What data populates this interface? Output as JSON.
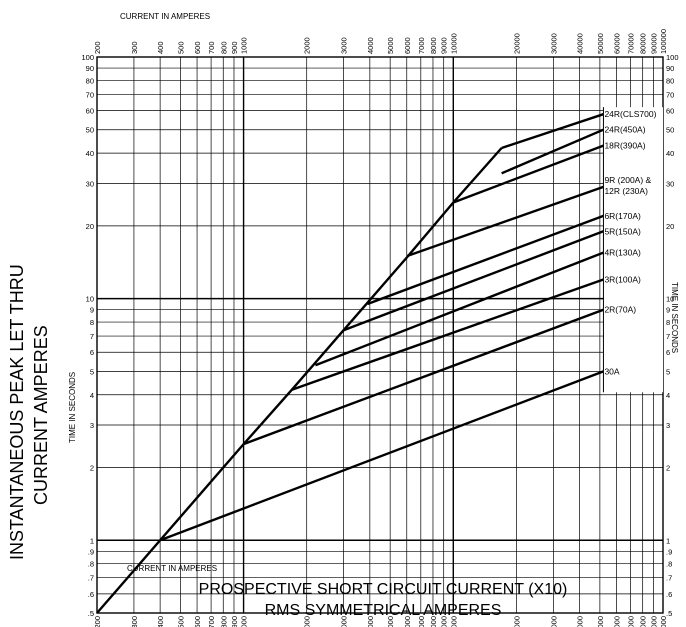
{
  "chart_data": {
    "type": "line",
    "title": "",
    "ylabel": [
      "INSTANTANEOUS PEAK LET THRU",
      "CURRENT AMPERES"
    ],
    "xlabel": [
      "PROSPECTIVE SHORT CIRCUIT CURRENT (X10)",
      "RMS SYMMETRICAL AMPERES"
    ],
    "top_axis_label": "CURRENT  IN  AMPERES",
    "bottom_axis_label": "CURRENT  IN  AMPERES",
    "left_axis_label": "TIME  IN  SECONDS",
    "right_axis_label": "TIME  IN  SECONDS",
    "x_scale": "log",
    "y_scale": "log",
    "xlim": [
      200,
      100000
    ],
    "ylim": [
      0.5,
      100
    ],
    "grid": true,
    "x_tick_labels": [
      "200",
      "300",
      "400",
      "500",
      "600",
      "700",
      "800",
      "900",
      "1000",
      "2000",
      "3000",
      "4000",
      "5000",
      "6000",
      "7000",
      "8000",
      "9000",
      "10000",
      "20000",
      "30000",
      "40000",
      "50000",
      "60000",
      "70000",
      "80000",
      "90000",
      "100000"
    ],
    "y_tick_labels": [
      ".5",
      ".6",
      ".7",
      ".8",
      ".9",
      "1",
      "2",
      "3",
      "4",
      "5",
      "6",
      "7",
      "8",
      "9",
      "10",
      "20",
      "30",
      "40",
      "50",
      "60",
      "70",
      "80",
      "90",
      "100"
    ],
    "series": [
      {
        "name": "",
        "x": [
          200,
          1000,
          1700,
          3000,
          6000,
          10000,
          17000
        ],
        "y": [
          0.5,
          2.5,
          4.2,
          7.4,
          14.8,
          25,
          42
        ]
      },
      {
        "name": "24R(CLS700)",
        "x": [
          17000,
          52000
        ],
        "y": [
          42,
          58
        ]
      },
      {
        "name": "24R(450A)",
        "x": [
          17000,
          52000
        ],
        "y": [
          33,
          50
        ]
      },
      {
        "name": "18R(390A)",
        "x": [
          10000,
          52000
        ],
        "y": [
          25,
          43
        ]
      },
      {
        "name": "9R (200A) & 12R (230A)",
        "x": [
          6000,
          52000
        ],
        "y": [
          15,
          29
        ]
      },
      {
        "name": "6R(170A)",
        "x": [
          3900,
          52000
        ],
        "y": [
          9.5,
          22
        ]
      },
      {
        "name": "5R(150A)",
        "x": [
          3000,
          52000
        ],
        "y": [
          7.4,
          19
        ]
      },
      {
        "name": "4R(130A)",
        "x": [
          2200,
          52000
        ],
        "y": [
          5.3,
          15.5
        ]
      },
      {
        "name": "3R(100A)",
        "x": [
          1700,
          52000
        ],
        "y": [
          4.2,
          12
        ]
      },
      {
        "name": "2R(70A)",
        "x": [
          1000,
          52000
        ],
        "y": [
          2.5,
          9
        ]
      },
      {
        "name": "30A",
        "x": [
          400,
          52000
        ],
        "y": [
          1.0,
          5
        ]
      }
    ]
  }
}
